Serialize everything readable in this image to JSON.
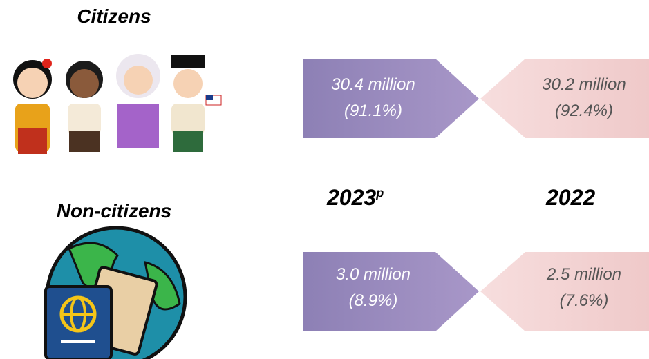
{
  "citizens": {
    "label": "Citizens",
    "y2023": {
      "value": "30.4 million",
      "share": "(91.1%)"
    },
    "y2022": {
      "value": "30.2 million",
      "share": "(92.4%)"
    }
  },
  "non_citizens": {
    "label": "Non-citizens",
    "y2023": {
      "value": "3.0 million",
      "share": "(8.9%)"
    },
    "y2022": {
      "value": "2.5 million",
      "share": "(7.6%)"
    }
  },
  "years": {
    "current": {
      "year": "2023",
      "mark": "p"
    },
    "previous": "2022"
  }
}
